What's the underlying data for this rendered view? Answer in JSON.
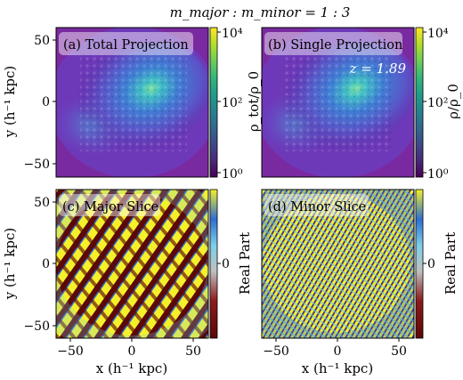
{
  "figure": {
    "title": "m_major : m_minor = 1 : 3",
    "panels": [
      {
        "id": "a",
        "label": "(a) Total Projection",
        "kind": "density"
      },
      {
        "id": "b",
        "label": "(b) Single Projection",
        "kind": "density",
        "annotation": "z = 1.89"
      },
      {
        "id": "c",
        "label": "(c) Major Slice",
        "kind": "wave_major"
      },
      {
        "id": "d",
        "label": "(d) Minor Slice",
        "kind": "wave_minor"
      }
    ],
    "x_axis": {
      "label": "x (h⁻¹ kpc)",
      "ticks": [
        "−50",
        "0",
        "50"
      ],
      "range": [
        -62,
        62
      ]
    },
    "y_axis": {
      "label": "y (h⁻¹ kpc)",
      "ticks": [
        "50",
        "0",
        "−50"
      ],
      "range": [
        -62,
        62
      ]
    },
    "colorbars": [
      {
        "panel": "a",
        "label": "ρ_tot/ρ_0",
        "ticks": [
          "10⁴",
          "10²",
          "10⁰"
        ],
        "scale": "log"
      },
      {
        "panel": "b",
        "label": "ρ/ρ_0",
        "ticks": [
          "10⁴",
          "10²",
          "10⁰"
        ],
        "scale": "log"
      },
      {
        "panel": "c",
        "label": "Real Part",
        "ticks": [
          "0"
        ]
      },
      {
        "panel": "d",
        "label": "Real Part",
        "ticks": [
          "0"
        ]
      }
    ],
    "colormap": [
      "#440154",
      "#482878",
      "#3e4989",
      "#31688e",
      "#26828e",
      "#1f9e89",
      "#35b779",
      "#6ece58",
      "#b5de2b",
      "#fde725"
    ],
    "wave_colormap": [
      "#5a0808",
      "#8c1a1a",
      "#c0c0c0",
      "#7fd0e8",
      "#2e6fd0",
      "#f5f02a"
    ]
  }
}
